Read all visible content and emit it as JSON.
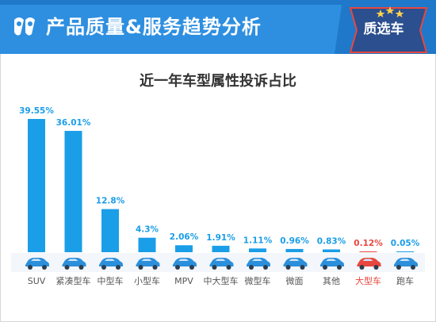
{
  "header": {
    "title": "产品质量&服务趋势分析",
    "badge": "质选车"
  },
  "colors": {
    "banner": "#2e8fe0",
    "bar": "#1a9ee8",
    "highlight": "#e8473f",
    "badge": "#2b4f8f"
  },
  "chart_data": {
    "type": "bar",
    "title": "近一年车型属性投诉占比",
    "xlabel": "",
    "ylabel": "",
    "categories": [
      "SUV",
      "紧凑型车",
      "中型车",
      "小型车",
      "MPV",
      "中大型车",
      "微型车",
      "微面",
      "其他",
      "大型车",
      "跑车"
    ],
    "values": [
      39.55,
      36.01,
      12.8,
      4.3,
      2.06,
      1.91,
      1.11,
      0.96,
      0.83,
      0.12,
      0.05
    ],
    "value_labels": [
      "39.55%",
      "36.01%",
      "12.8%",
      "4.3%",
      "2.06%",
      "1.91%",
      "1.11%",
      "0.96%",
      "0.83%",
      "0.12%",
      "0.05%"
    ],
    "highlight_index": 9,
    "ylim": [
      0,
      40
    ],
    "grid": false,
    "legend": "none",
    "category_icons": [
      "car-icon",
      "car-icon",
      "car-icon",
      "car-icon",
      "car-icon",
      "car-icon",
      "car-icon",
      "car-icon",
      "car-icon",
      "car-icon",
      "car-icon"
    ]
  }
}
